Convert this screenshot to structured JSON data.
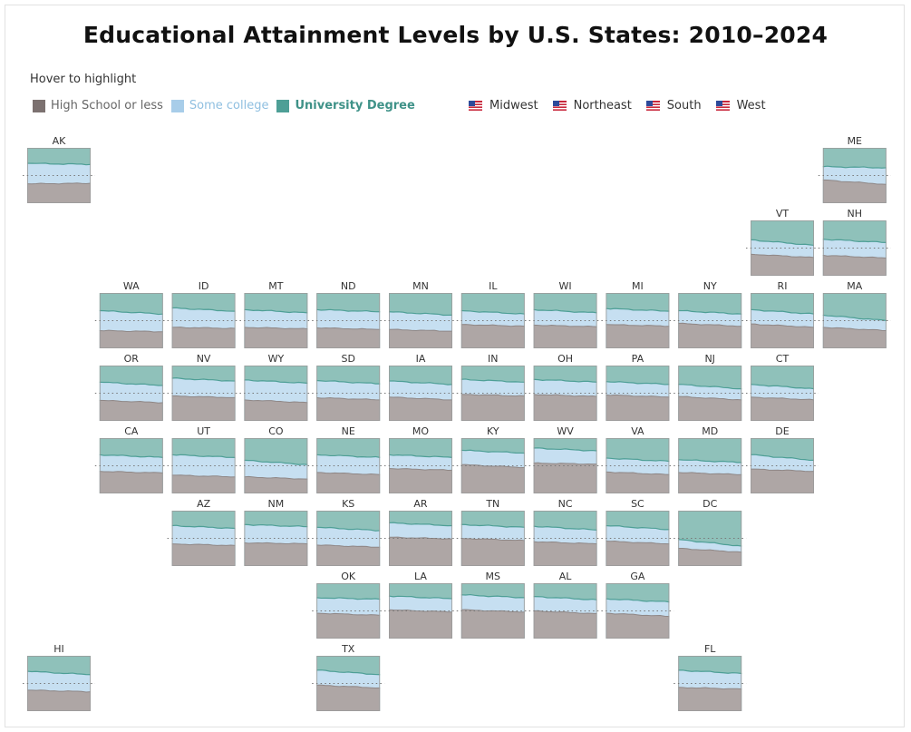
{
  "title": "Educational Attainment Levels by U.S. States: 2010–2024",
  "hint": "Hover to highlight",
  "legend": {
    "categories": [
      {
        "label": "High School or less",
        "color": "#7c7170",
        "text_color": "#666666"
      },
      {
        "label": "Some college",
        "color": "#a8cde9",
        "text_color": "#8fbfe0"
      },
      {
        "label": "University Degree",
        "color": "#4e9f96",
        "text_color": "#3f9288"
      }
    ],
    "regions": [
      {
        "label": "Midwest",
        "icon": "us-flag-icon"
      },
      {
        "label": "Northeast",
        "icon": "us-flag-icon"
      },
      {
        "label": "South",
        "icon": "us-flag-icon"
      },
      {
        "label": "West",
        "icon": "us-flag-icon"
      }
    ]
  },
  "colors": {
    "high_school_fill": "#aea6a5",
    "some_college_fill": "#c6dff1",
    "university_fill": "#8fc1ba",
    "university_line": "#4e9f96",
    "reference_line": "#777777",
    "tile_border": "#9a9a9a"
  },
  "chart_data": {
    "type": "area",
    "chart_kind": "tile-grid map of stacked 100% area charts, one per state",
    "x_start": 2010,
    "x_end": 2024,
    "y_range": [
      0,
      100
    ],
    "y_unit": "percent of population",
    "reference_line_y": 50,
    "reference_line_style": "dotted",
    "grid": false,
    "series_order_bottom_to_top": [
      "High School or less",
      "Some college",
      "University Degree"
    ],
    "states": [
      {
        "code": "AK",
        "hs": [
          35,
          36
        ],
        "col": [
          72,
          70
        ]
      },
      {
        "code": "ME",
        "hs": [
          42,
          34
        ],
        "col": [
          66,
          64
        ]
      },
      {
        "code": "VT",
        "hs": [
          39,
          33
        ],
        "col": [
          65,
          55
        ]
      },
      {
        "code": "NH",
        "hs": [
          37,
          32
        ],
        "col": [
          66,
          60
        ]
      },
      {
        "code": "WA",
        "hs": [
          32,
          30
        ],
        "col": [
          68,
          62
        ]
      },
      {
        "code": "ID",
        "hs": [
          38,
          36
        ],
        "col": [
          73,
          67
        ]
      },
      {
        "code": "MT",
        "hs": [
          38,
          35
        ],
        "col": [
          70,
          64
        ]
      },
      {
        "code": "ND",
        "hs": [
          37,
          34
        ],
        "col": [
          70,
          66
        ]
      },
      {
        "code": "MN",
        "hs": [
          34,
          31
        ],
        "col": [
          66,
          60
        ]
      },
      {
        "code": "IL",
        "hs": [
          43,
          40
        ],
        "col": [
          68,
          62
        ]
      },
      {
        "code": "WI",
        "hs": [
          42,
          39
        ],
        "col": [
          70,
          64
        ]
      },
      {
        "code": "MI",
        "hs": [
          43,
          40
        ],
        "col": [
          72,
          67
        ]
      },
      {
        "code": "NY",
        "hs": [
          45,
          40
        ],
        "col": [
          68,
          62
        ]
      },
      {
        "code": "RI",
        "hs": [
          44,
          38
        ],
        "col": [
          70,
          62
        ]
      },
      {
        "code": "MA",
        "hs": [
          38,
          32
        ],
        "col": [
          60,
          50
        ]
      },
      {
        "code": "OR",
        "hs": [
          37,
          33
        ],
        "col": [
          70,
          64
        ]
      },
      {
        "code": "NV",
        "hs": [
          45,
          42
        ],
        "col": [
          77,
          72
        ]
      },
      {
        "code": "WY",
        "hs": [
          38,
          33
        ],
        "col": [
          74,
          68
        ]
      },
      {
        "code": "SD",
        "hs": [
          42,
          38
        ],
        "col": [
          73,
          67
        ]
      },
      {
        "code": "IA",
        "hs": [
          43,
          38
        ],
        "col": [
          72,
          66
        ]
      },
      {
        "code": "IN",
        "hs": [
          48,
          45
        ],
        "col": [
          75,
          70
        ]
      },
      {
        "code": "OH",
        "hs": [
          48,
          44
        ],
        "col": [
          75,
          70
        ]
      },
      {
        "code": "PA",
        "hs": [
          47,
          43
        ],
        "col": [
          71,
          66
        ]
      },
      {
        "code": "NJ",
        "hs": [
          44,
          38
        ],
        "col": [
          66,
          58
        ]
      },
      {
        "code": "CT",
        "hs": [
          43,
          38
        ],
        "col": [
          66,
          58
        ]
      },
      {
        "code": "CA",
        "hs": [
          40,
          37
        ],
        "col": [
          70,
          65
        ]
      },
      {
        "code": "UT",
        "hs": [
          33,
          30
        ],
        "col": [
          70,
          65
        ]
      },
      {
        "code": "CO",
        "hs": [
          30,
          26
        ],
        "col": [
          60,
          52
        ]
      },
      {
        "code": "NE",
        "hs": [
          38,
          34
        ],
        "col": [
          70,
          65
        ]
      },
      {
        "code": "MO",
        "hs": [
          45,
          42
        ],
        "col": [
          70,
          65
        ]
      },
      {
        "code": "KY",
        "hs": [
          52,
          47
        ],
        "col": [
          78,
          73
        ]
      },
      {
        "code": "WV",
        "hs": [
          55,
          53
        ],
        "col": [
          82,
          77
        ]
      },
      {
        "code": "VA",
        "hs": [
          39,
          34
        ],
        "col": [
          64,
          58
        ]
      },
      {
        "code": "MD",
        "hs": [
          38,
          34
        ],
        "col": [
          61,
          56
        ]
      },
      {
        "code": "DE",
        "hs": [
          44,
          40
        ],
        "col": [
          70,
          60
        ]
      },
      {
        "code": "AZ",
        "hs": [
          40,
          37
        ],
        "col": [
          73,
          68
        ]
      },
      {
        "code": "NM",
        "hs": [
          42,
          40
        ],
        "col": [
          75,
          71
        ]
      },
      {
        "code": "KS",
        "hs": [
          38,
          34
        ],
        "col": [
          70,
          64
        ]
      },
      {
        "code": "AR",
        "hs": [
          52,
          49
        ],
        "col": [
          78,
          73
        ]
      },
      {
        "code": "TN",
        "hs": [
          50,
          46
        ],
        "col": [
          75,
          70
        ]
      },
      {
        "code": "NC",
        "hs": [
          44,
          40
        ],
        "col": [
          72,
          65
        ]
      },
      {
        "code": "SC",
        "hs": [
          45,
          40
        ],
        "col": [
          73,
          66
        ]
      },
      {
        "code": "DC",
        "hs": [
          32,
          25
        ],
        "col": [
          48,
          36
        ]
      },
      {
        "code": "OK",
        "hs": [
          46,
          42
        ],
        "col": [
          74,
          71
        ]
      },
      {
        "code": "LA",
        "hs": [
          52,
          48
        ],
        "col": [
          77,
          72
        ]
      },
      {
        "code": "MS",
        "hs": [
          52,
          48
        ],
        "col": [
          79,
          74
        ]
      },
      {
        "code": "AL",
        "hs": [
          50,
          45
        ],
        "col": [
          76,
          70
        ]
      },
      {
        "code": "GA",
        "hs": [
          46,
          40
        ],
        "col": [
          72,
          66
        ]
      },
      {
        "code": "HI",
        "hs": [
          38,
          35
        ],
        "col": [
          72,
          66
        ]
      },
      {
        "code": "TX",
        "hs": [
          47,
          42
        ],
        "col": [
          74,
          66
        ]
      },
      {
        "code": "FL",
        "hs": [
          43,
          40
        ],
        "col": [
          74,
          68
        ]
      }
    ]
  }
}
